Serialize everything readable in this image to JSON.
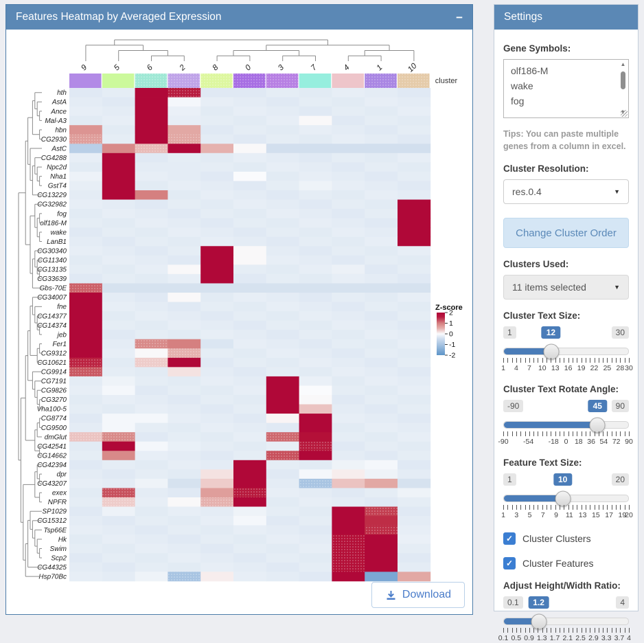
{
  "icons": {
    "collapse": "−",
    "caret_down": "▼",
    "check": "✓",
    "scroll_up": "▲",
    "scroll_down": "▼"
  },
  "colors": {
    "header_bg": "#5b88b5",
    "accent_blue": "#4a7cb8",
    "heat_max_red": "#b00838",
    "heat_base_blue": "#e4ecf5",
    "heat_min_blue": "#5d94c8"
  },
  "heatmap_panel": {
    "title": "Features Heatmap by Averaged Expression",
    "download_label": "Download",
    "cluster_band_label": "cluster",
    "legend": {
      "title": "Z-score",
      "ticks": [
        "2",
        "1",
        "0",
        "-1",
        "-2"
      ]
    }
  },
  "chart_data": {
    "type": "heatmap",
    "title": "Features Heatmap by Averaged Expression",
    "colorscale_label": "Z-score",
    "zmin": -2,
    "zmax": 2,
    "columns": [
      "9",
      "5",
      "6",
      "2",
      "8",
      "0",
      "3",
      "7",
      "4",
      "1",
      "10"
    ],
    "column_colors": [
      "#b28ae6",
      "#ccf99c",
      "#9fe8d5",
      "#bfa3e8",
      "#ddf79f",
      "#a76ee3",
      "#b77fe3",
      "#96eede",
      "#eec5ca",
      "#a986e3",
      "#e5cba9"
    ],
    "column_dotted": [
      2,
      3,
      4,
      5,
      6,
      9,
      10
    ],
    "rows": [
      "hth",
      "AstA",
      "Ance",
      "Mal-A3",
      "hbn",
      "CG2930",
      "AstC",
      "CG4288",
      "Npc2d",
      "Nha1",
      "GstT4",
      "CG13229",
      "CG32982",
      "fog",
      "olf186-M",
      "wake",
      "LanB1",
      "CG30340",
      "CG11340",
      "CG13135",
      "CG33639",
      "Gbs-70E",
      "CG34007",
      "fne",
      "CG14377",
      "CG14374",
      "jeb",
      "Fer1",
      "CG9312",
      "CG10621",
      "CG9914",
      "CG7191",
      "CG9826",
      "CG3270",
      "Vha100-5",
      "CG8774",
      "CG9500",
      "dmGlut",
      "CG42541",
      "CG14662",
      "CG42394",
      "dpr",
      "CG43207",
      "exex",
      "NPFR",
      "SP1029",
      "CG15312",
      "Tsp66E",
      "Hk",
      "Swim",
      "Scp2",
      "CG44325",
      "Hsp70Bc"
    ],
    "values": [
      [
        -0.3,
        -0.3,
        2.5,
        2.3,
        -0.35,
        -0.3,
        -0.3,
        -0.3,
        -0.3,
        -0.3,
        -0.3
      ],
      [
        -0.3,
        -0.3,
        2.5,
        -0.05,
        -0.3,
        -0.3,
        -0.3,
        -0.3,
        -0.3,
        -0.3,
        -0.3
      ],
      [
        -0.3,
        -0.3,
        2.5,
        -0.2,
        -0.3,
        -0.3,
        -0.3,
        -0.3,
        -0.3,
        -0.3,
        -0.3
      ],
      [
        -0.3,
        -0.3,
        2.5,
        -0.2,
        -0.3,
        -0.3,
        -0.3,
        0.05,
        -0.3,
        -0.3,
        -0.3
      ],
      [
        1.1,
        -0.3,
        2.5,
        0.9,
        -0.3,
        -0.3,
        -0.3,
        -0.3,
        -0.3,
        -0.3,
        -0.3
      ],
      [
        1.0,
        -0.3,
        2.5,
        0.9,
        -0.3,
        -0.3,
        -0.3,
        -0.3,
        -0.3,
        -0.3,
        -0.3
      ],
      [
        -0.7,
        1.2,
        0.7,
        2.5,
        0.8,
        0.05,
        -0.55,
        -0.55,
        -0.55,
        -0.55,
        -0.55
      ],
      [
        -0.3,
        2.5,
        -0.3,
        -0.3,
        -0.3,
        -0.3,
        -0.3,
        -0.3,
        -0.3,
        -0.3,
        -0.3
      ],
      [
        -0.3,
        2.5,
        -0.3,
        -0.25,
        -0.3,
        -0.3,
        -0.3,
        -0.3,
        -0.3,
        -0.3,
        -0.3
      ],
      [
        -0.15,
        2.5,
        -0.3,
        -0.3,
        -0.3,
        0,
        -0.3,
        -0.3,
        -0.3,
        -0.3,
        -0.3
      ],
      [
        -0.2,
        2.5,
        -0.3,
        -0.3,
        -0.3,
        -0.3,
        -0.3,
        -0.1,
        -0.3,
        -0.3,
        -0.3
      ],
      [
        -0.3,
        2.5,
        1.3,
        -0.3,
        -0.3,
        -0.3,
        -0.3,
        -0.3,
        -0.3,
        -0.3,
        -0.3
      ],
      [
        -0.3,
        -0.3,
        -0.3,
        -0.3,
        -0.3,
        -0.3,
        -0.3,
        -0.3,
        -0.3,
        -0.3,
        2.5
      ],
      [
        -0.3,
        -0.3,
        -0.3,
        -0.3,
        -0.3,
        -0.3,
        -0.3,
        -0.3,
        -0.3,
        -0.3,
        2.5
      ],
      [
        -0.3,
        -0.3,
        -0.3,
        -0.3,
        -0.3,
        -0.3,
        -0.3,
        -0.3,
        -0.3,
        -0.3,
        2.5
      ],
      [
        -0.3,
        -0.3,
        -0.3,
        -0.3,
        -0.3,
        -0.3,
        -0.3,
        -0.3,
        -0.3,
        -0.3,
        2.5
      ],
      [
        -0.3,
        -0.3,
        -0.3,
        -0.3,
        -0.3,
        -0.3,
        -0.3,
        -0.3,
        -0.3,
        -0.3,
        2.5
      ],
      [
        -0.3,
        -0.3,
        -0.3,
        -0.3,
        2.5,
        0.05,
        -0.3,
        -0.3,
        -0.3,
        -0.3,
        -0.3
      ],
      [
        -0.3,
        -0.3,
        -0.3,
        -0.3,
        2.5,
        0.05,
        -0.3,
        -0.3,
        -0.3,
        -0.3,
        -0.3
      ],
      [
        -0.3,
        -0.3,
        -0.3,
        0.05,
        2.5,
        -0.3,
        -0.3,
        -0.3,
        -0.15,
        -0.3,
        -0.3
      ],
      [
        -0.3,
        -0.3,
        -0.3,
        -0.3,
        2.5,
        -0.3,
        -0.3,
        -0.3,
        -0.3,
        -0.3,
        -0.3
      ],
      [
        1.7,
        -0.5,
        -0.5,
        -0.5,
        -0.5,
        -0.5,
        -0.5,
        -0.5,
        -0.5,
        -0.5,
        -0.5
      ],
      [
        2.5,
        -0.3,
        -0.3,
        0.05,
        -0.3,
        -0.3,
        -0.3,
        -0.3,
        -0.3,
        -0.3,
        -0.3
      ],
      [
        2.5,
        -0.3,
        -0.3,
        -0.3,
        -0.3,
        -0.3,
        -0.3,
        -0.3,
        -0.3,
        -0.3,
        -0.3
      ],
      [
        2.5,
        -0.3,
        -0.3,
        -0.3,
        -0.3,
        -0.3,
        -0.3,
        -0.3,
        -0.3,
        -0.3,
        -0.3
      ],
      [
        2.5,
        -0.3,
        -0.3,
        -0.3,
        -0.3,
        -0.3,
        -0.3,
        -0.3,
        -0.3,
        -0.3,
        -0.3
      ],
      [
        2.5,
        -0.3,
        -0.3,
        -0.3,
        -0.3,
        -0.3,
        -0.3,
        -0.3,
        -0.3,
        -0.3,
        -0.3
      ],
      [
        2.5,
        -0.3,
        1.2,
        1.3,
        -0.4,
        -0.3,
        -0.3,
        -0.3,
        -0.3,
        -0.3,
        -0.3
      ],
      [
        2.5,
        -0.3,
        0.05,
        0.8,
        -0.3,
        -0.3,
        -0.3,
        -0.3,
        -0.3,
        -0.3,
        -0.3
      ],
      [
        2.2,
        -0.3,
        0.5,
        2.5,
        -0.3,
        -0.3,
        -0.3,
        -0.3,
        -0.3,
        -0.3,
        -0.3
      ],
      [
        1.8,
        -0.3,
        -0.3,
        0.3,
        -0.3,
        -0.3,
        -0.3,
        -0.3,
        -0.3,
        -0.3,
        -0.3
      ],
      [
        -0.3,
        -0.1,
        -0.3,
        -0.3,
        -0.3,
        -0.3,
        2.5,
        -0.2,
        -0.3,
        -0.3,
        -0.3
      ],
      [
        -0.3,
        -0.05,
        -0.3,
        -0.3,
        -0.3,
        -0.3,
        2.5,
        0,
        -0.3,
        -0.3,
        -0.3
      ],
      [
        -0.3,
        -0.3,
        -0.3,
        -0.3,
        -0.3,
        -0.3,
        2.5,
        0.05,
        -0.3,
        -0.3,
        -0.3
      ],
      [
        -0.3,
        -0.3,
        -0.3,
        -0.3,
        -0.3,
        -0.3,
        2.5,
        0.6,
        -0.3,
        -0.3,
        -0.3
      ],
      [
        -0.3,
        -0.05,
        -0.05,
        -0.3,
        -0.3,
        -0.3,
        0.1,
        2.5,
        -0.3,
        -0.3,
        -0.3
      ],
      [
        -0.3,
        -0.05,
        -0.3,
        -0.3,
        -0.3,
        -0.3,
        -0.3,
        2.5,
        -0.3,
        -0.3,
        -0.3
      ],
      [
        0.6,
        1.2,
        -0.3,
        -0.3,
        -0.3,
        -0.3,
        1.6,
        2.4,
        -0.3,
        -0.3,
        -0.3
      ],
      [
        -0.3,
        2.5,
        -0.05,
        -0.15,
        -0.3,
        -0.3,
        -0.3,
        2.3,
        -0.3,
        -0.3,
        -0.3
      ],
      [
        -0.3,
        1.2,
        -0.3,
        -0.3,
        -0.3,
        -0.3,
        1.9,
        2.5,
        -0.3,
        -0.3,
        -0.3
      ],
      [
        -0.3,
        -0.3,
        -0.3,
        -0.3,
        -0.3,
        2.5,
        -0.3,
        -0.3,
        -0.1,
        -0.05,
        -0.3
      ],
      [
        -0.3,
        -0.3,
        -0.3,
        -0.3,
        0.3,
        2.5,
        -0.3,
        -0.05,
        0.2,
        -0.1,
        -0.3
      ],
      [
        -0.3,
        -0.3,
        -0.1,
        -0.5,
        0.5,
        2.5,
        -0.3,
        -0.8,
        0.6,
        0.9,
        -0.5
      ],
      [
        -0.3,
        1.9,
        -0.3,
        -0.3,
        1.0,
        2.3,
        -0.3,
        -0.3,
        -0.3,
        -0.3,
        -0.1
      ],
      [
        -0.3,
        0.5,
        -0.3,
        0.05,
        0.8,
        2.5,
        -0.3,
        -0.3,
        -0.3,
        -0.3,
        -0.3
      ],
      [
        -0.3,
        -0.15,
        -0.3,
        -0.3,
        -0.3,
        -0.1,
        -0.3,
        -0.3,
        2.5,
        2.0,
        -0.3
      ],
      [
        -0.3,
        -0.3,
        -0.3,
        -0.3,
        -0.3,
        -0.05,
        -0.3,
        -0.3,
        2.5,
        2.1,
        -0.3
      ],
      [
        -0.3,
        -0.3,
        -0.3,
        -0.3,
        -0.3,
        -0.3,
        -0.3,
        -0.3,
        2.5,
        2.1,
        -0.3
      ],
      [
        -0.3,
        -0.3,
        -0.3,
        -0.3,
        -0.3,
        -0.3,
        -0.3,
        -0.3,
        2.4,
        2.5,
        -0.15
      ],
      [
        -0.3,
        -0.3,
        -0.3,
        -0.3,
        -0.3,
        -0.3,
        -0.3,
        -0.3,
        2.4,
        2.5,
        -0.3
      ],
      [
        -0.3,
        -0.3,
        -0.3,
        -0.3,
        -0.3,
        -0.3,
        -0.3,
        -0.3,
        2.4,
        2.5,
        -0.3
      ],
      [
        -0.3,
        -0.3,
        -0.3,
        -0.3,
        -0.3,
        -0.3,
        -0.3,
        -0.3,
        2.4,
        2.5,
        -0.3
      ],
      [
        -0.3,
        -0.3,
        -0.1,
        -0.8,
        0.2,
        -0.3,
        -0.3,
        -0.3,
        2.5,
        -1.3,
        0.9
      ]
    ],
    "dotted_cells": [
      [
        0,
        3
      ],
      [
        5,
        0
      ],
      [
        5,
        3
      ],
      [
        6,
        2
      ],
      [
        21,
        0
      ],
      [
        27,
        2
      ],
      [
        28,
        3
      ],
      [
        29,
        0
      ],
      [
        29,
        2
      ],
      [
        30,
        0
      ],
      [
        37,
        0
      ],
      [
        37,
        1
      ],
      [
        37,
        6
      ],
      [
        38,
        7
      ],
      [
        39,
        6
      ],
      [
        42,
        7
      ],
      [
        43,
        1
      ],
      [
        43,
        5
      ],
      [
        44,
        1
      ],
      [
        44,
        4
      ],
      [
        45,
        9
      ],
      [
        47,
        9
      ],
      [
        48,
        8
      ],
      [
        49,
        8
      ],
      [
        50,
        8
      ],
      [
        51,
        8
      ],
      [
        52,
        3
      ]
    ],
    "col_tree": [
      [
        "9",
        [
          "5",
          [
            "6",
            "2"
          ]
        ]
      ],
      [
        [
          [
            "8",
            "0"
          ],
          [
            "3",
            "7"
          ]
        ],
        [
          [
            "4",
            "1"
          ],
          "10"
        ]
      ]
    ],
    "row_tree": [
      [
        [
          [
            [
              "hth",
              [
                "AstA",
                [
                  "Ance",
                  "Mal-A3"
                ]
              ]
            ],
            [
              "hbn",
              "CG2930"
            ]
          ],
          [
            "AstC",
            [
              [
                "CG4288",
                [
                  "Npc2d",
                  [
                    "Nha1",
                    "GstT4"
                  ]
                ]
              ],
              "CG13229"
            ]
          ]
        ],
        [
          [
            "CG32982",
            [
              [
                "fog",
                "olf186-M"
              ],
              [
                "wake",
                "LanB1"
              ]
            ]
          ],
          [
            [
              "CG30340",
              [
                "CG11340",
                [
                  "CG13135",
                  "CG33639"
                ]
              ]
            ],
            "Gbs-70E"
          ]
        ]
      ],
      [
        [
          [
            [
              [
                "CG34007",
                [
                  "fne",
                  [
                    "CG14377",
                    [
                      "CG14374",
                      "jeb"
                    ]
                  ]
                ]
              ],
              [
                [
                  "Fer1",
                  "CG9312"
                ],
                "CG10621"
              ]
            ],
            [
              "CG9914",
              [
                "CG7191",
                [
                  "CG9826",
                  [
                    "CG3270",
                    "Vha100-5"
                  ]
                ]
              ]
            ]
          ],
          [
            [
              [
                "CG8774",
                "CG9500"
              ],
              "dmGlut"
            ],
            [
              "CG42541",
              "CG14662"
            ]
          ]
        ],
        [
          [
            [
              "CG42394",
              [
                "dpr",
                "CG43207"
              ]
            ],
            [
              "exex",
              "NPFR"
            ]
          ],
          [
            [
              [
                "SP1029",
                [
                  "CG15312",
                  [
                    "Tsp66E",
                    [
                      "Hk",
                      [
                        "Swim",
                        "Scp2"
                      ]
                    ]
                  ]
                ]
              ],
              "CG44325"
            ],
            "Hsp70Bc"
          ]
        ]
      ]
    ]
  },
  "settings": {
    "title": "Settings",
    "gene_symbols_label": "Gene Symbols:",
    "gene_list": [
      "olf186-M",
      "wake",
      "fog"
    ],
    "tips": "Tips: You can paste multiple genes from a column in excel.",
    "cluster_resolution_label": "Cluster Resolution:",
    "cluster_resolution_value": "res.0.4",
    "change_cluster_order_label": "Change Cluster Order",
    "clusters_used_label": "Clusters Used:",
    "clusters_used_value": "11 items selected",
    "checkboxes": [
      {
        "label": "Cluster Clusters",
        "checked": true
      },
      {
        "label": "Cluster Features",
        "checked": true
      }
    ],
    "sliders": [
      {
        "id": "cluster-text-size",
        "label": "Cluster Text Size:",
        "min": 1,
        "max": 30,
        "value": 12,
        "ticks": [
          1,
          4,
          7,
          10,
          13,
          16,
          19,
          22,
          25,
          28,
          30
        ]
      },
      {
        "id": "cluster-text-rotate-angle",
        "label": "Cluster Text Rotate Angle:",
        "min": -90,
        "max": 90,
        "value": 45,
        "ticks": [
          -90,
          -54,
          -18,
          0,
          18,
          36,
          54,
          72,
          90
        ]
      },
      {
        "id": "feature-text-size",
        "label": "Feature Text Size:",
        "min": 1,
        "max": 20,
        "value": 10,
        "ticks": [
          1,
          3,
          5,
          7,
          9,
          11,
          13,
          15,
          17,
          19,
          20
        ]
      },
      {
        "id": "adjust-height-width-ratio",
        "label": "Adjust Height/Width Ratio:",
        "min": 0.1,
        "max": 4,
        "value": 1.2,
        "ticks": [
          0.1,
          0.5,
          0.9,
          1.3,
          1.7,
          2.1,
          2.5,
          2.9,
          3.3,
          3.7,
          4
        ]
      }
    ]
  }
}
